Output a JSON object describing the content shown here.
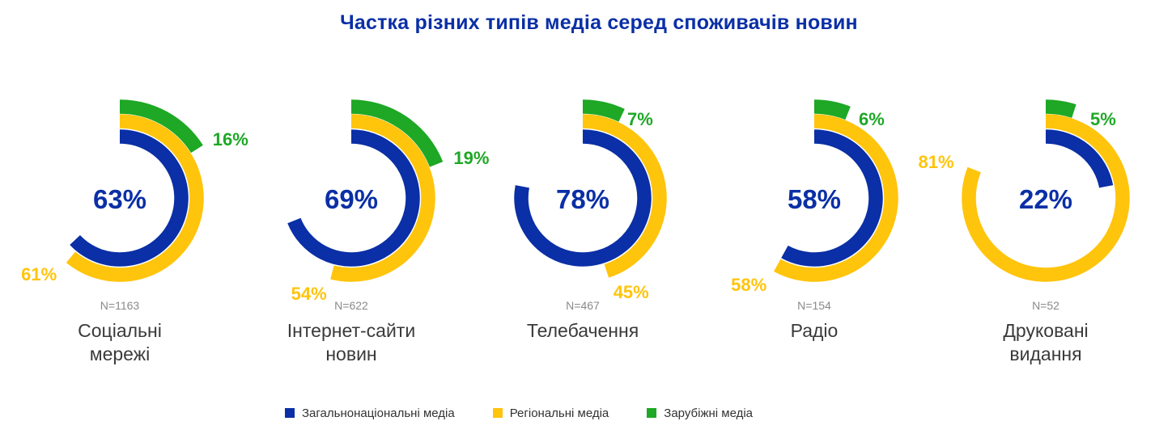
{
  "title": "Частка різних типів медіа серед споживачів новин",
  "colors": {
    "national": "#0a2fa6",
    "regional": "#ffc40c",
    "foreign": "#1ea825"
  },
  "legend": [
    {
      "key": "national",
      "label": "Загальнонаціональні медіа"
    },
    {
      "key": "regional",
      "label": "Регіональні медіа"
    },
    {
      "key": "foreign",
      "label": "Зарубіжні медіа"
    }
  ],
  "chart_data": {
    "type": "radial-bar",
    "title": "Частка різних типів медіа серед споживачів новин",
    "series": [
      {
        "key": "national",
        "name": "Загальнонаціональні медіа"
      },
      {
        "key": "regional",
        "name": "Регіональні медіа"
      },
      {
        "key": "foreign",
        "name": "Зарубіжні медіа"
      }
    ],
    "items": [
      {
        "category": [
          "Соціальні",
          "мережі"
        ],
        "n": "N=1163",
        "values": {
          "national": 63,
          "regional": 61,
          "foreign": 16
        },
        "labels": {
          "national": "63%",
          "regional": "61%",
          "foreign": "16%"
        }
      },
      {
        "category": [
          "Інтернет-сайти",
          "новин"
        ],
        "n": "N=622",
        "values": {
          "national": 69,
          "regional": 54,
          "foreign": 19
        },
        "labels": {
          "national": "69%",
          "regional": "54%",
          "foreign": "19%"
        }
      },
      {
        "category": [
          "Телебачення"
        ],
        "n": "N=467",
        "values": {
          "national": 78,
          "regional": 45,
          "foreign": 7
        },
        "labels": {
          "national": "78%",
          "regional": "45%",
          "foreign": "7%"
        }
      },
      {
        "category": [
          "Радіо"
        ],
        "n": "N=154",
        "values": {
          "national": 58,
          "regional": 58,
          "foreign": 6
        },
        "labels": {
          "national": "58%",
          "regional": "58%",
          "foreign": "6%"
        }
      },
      {
        "category": [
          "Друковані",
          "видання"
        ],
        "n": "N=52",
        "values": {
          "national": 22,
          "regional": 81,
          "foreign": 5
        },
        "labels": {
          "national": "22%",
          "regional": "81%",
          "foreign": "5%"
        }
      }
    ]
  }
}
